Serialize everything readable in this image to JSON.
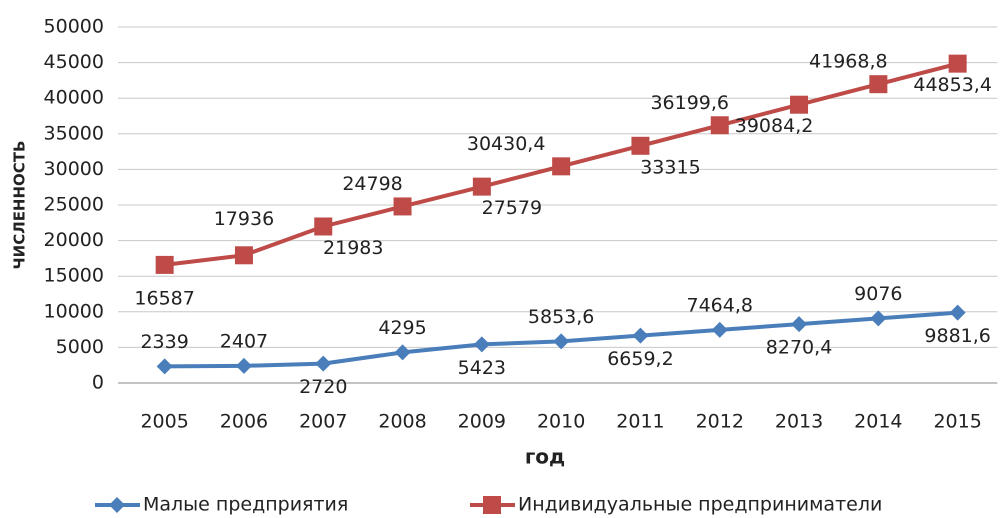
{
  "chart_data": {
    "type": "line",
    "x_label": "год",
    "y_label": "ЧИСЛЕННОСТЬ",
    "categories": [
      "2005",
      "2006",
      "2007",
      "2008",
      "2009",
      "2010",
      "2011",
      "2012",
      "2013",
      "2014",
      "2015"
    ],
    "series": [
      {
        "name": "Малые предприятия",
        "color": "#4a7ebb",
        "marker": "diamond",
        "values": [
          2339,
          2407,
          2720,
          4295,
          5423,
          5853.6,
          6659.2,
          7464.8,
          8270.4,
          9076,
          9881.6
        ],
        "value_labels": [
          "2339",
          "2407",
          "2720",
          "4295",
          "5423",
          "5853,6",
          "6659,2",
          "7464,8",
          "8270,4",
          "9076",
          "9881,6"
        ]
      },
      {
        "name": "Индивидуальные предприниматели",
        "color": "#be4b48",
        "marker": "square",
        "values": [
          16587,
          17936,
          21983,
          24798,
          27579,
          30430.4,
          33315,
          36199.6,
          39084.2,
          41968.8,
          44853.4
        ],
        "value_labels": [
          "16587",
          "17936",
          "21983",
          "24798",
          "27579",
          "30430,4",
          "33315",
          "36199,6",
          "39084,2",
          "41968,8",
          "44853,4"
        ]
      }
    ],
    "ylim": [
      0,
      50000
    ],
    "yticks": [
      0,
      5000,
      10000,
      15000,
      20000,
      25000,
      30000,
      35000,
      40000,
      45000,
      50000
    ],
    "grid": true,
    "legend": "bottom"
  }
}
